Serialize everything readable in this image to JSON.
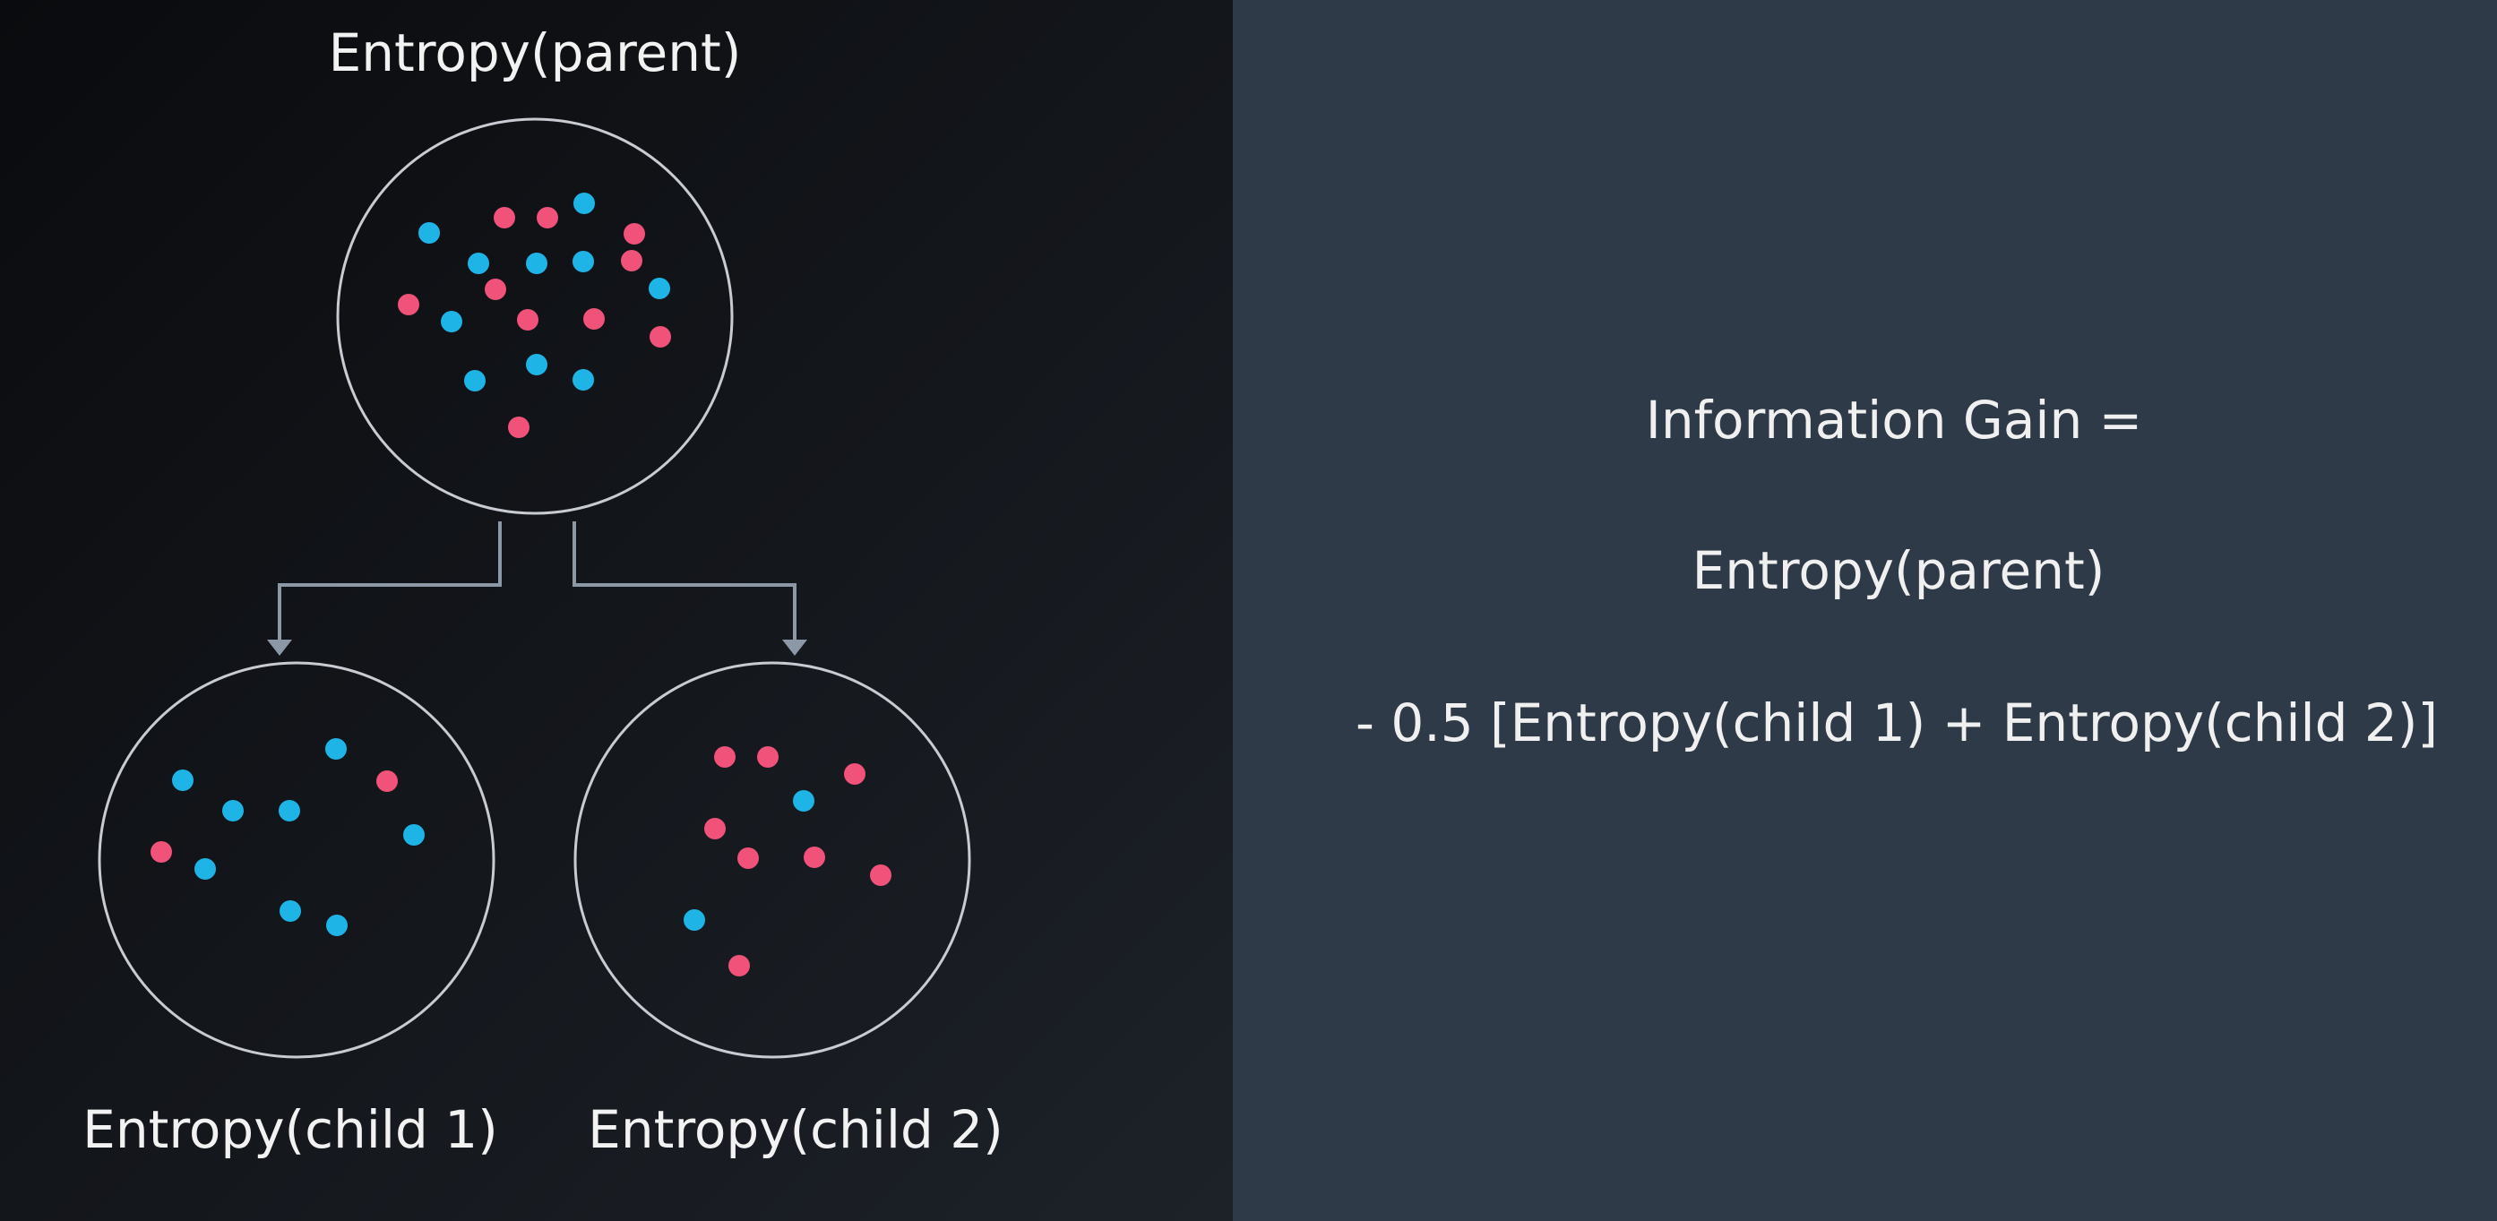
{
  "labels": {
    "parent": "Entropy(parent)",
    "child1": "Entropy(child 1)",
    "child2": "Entropy(child 2)"
  },
  "formula": {
    "line1": "Information Gain =",
    "line2": "Entropy(parent)",
    "line3": "- 0.5 [Entropy(child 1) + Entropy(child 2)]"
  },
  "colors": {
    "pink": "#f0527a",
    "blue": "#1fb4e6",
    "circle_stroke": "#c8ccd2",
    "arrow": "#8c98a6"
  }
}
